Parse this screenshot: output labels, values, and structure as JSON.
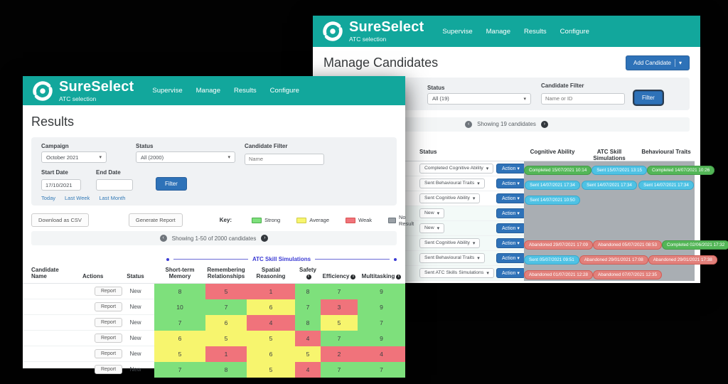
{
  "colors": {
    "teal": "#12a79c",
    "blue": "#2e72b8",
    "strong": "#7ee07c",
    "average": "#f7f56e",
    "weak": "#f0737b",
    "no_result": "#9aa0a6"
  },
  "back_window": {
    "brand": {
      "name": "SureSelect",
      "subtitle": "ATC selection"
    },
    "nav": [
      "Supervise",
      "Manage",
      "Results",
      "Configure"
    ],
    "page_title": "Manage Candidates",
    "add_candidate_label": "Add Candidate",
    "add_candidate_caret": "▾",
    "filters": {
      "status_label": "Status",
      "status_value": "All (19)",
      "candidate_filter_label": "Candidate Filter",
      "candidate_filter_placeholder": "Name or ID",
      "filter_button": "Filter"
    },
    "pagination": {
      "prev": "‹",
      "text": "Showing 19 candidates",
      "next": "›"
    },
    "table": {
      "headers": [
        "Status",
        "Cognitive Ability",
        "ATC Skill Simulations",
        "Behavioural Traits"
      ],
      "action_label": "Action ▾",
      "status_caret": "▾",
      "rows": [
        {
          "status": "Completed Cognitive Ability",
          "badges": [
            {
              "text": "Completed 15/07/2021 10:14",
              "type": "completed"
            },
            {
              "text": "Sent 15/07/2021 13:15",
              "type": "sent"
            },
            {
              "text": "Completed 14/07/2021 10:26",
              "type": "completed"
            }
          ]
        },
        {
          "status": "Sent Behavioural Traits",
          "badges": [
            {
              "text": "Sent 14/07/2021 17:34",
              "type": "sent"
            },
            {
              "text": "Sent 14/07/2021 17:34",
              "type": "sent"
            },
            {
              "text": "Sent 14/07/2021 17:34",
              "type": "sent"
            }
          ]
        },
        {
          "status": "Sent Cognitive Ability",
          "badges": [
            {
              "text": "Sent 14/07/2021 10:50",
              "type": "sent"
            },
            null,
            null
          ]
        },
        {
          "status": "New",
          "badges": [
            null,
            null,
            null
          ]
        },
        {
          "status": "New",
          "badges": [
            null,
            null,
            null
          ]
        },
        {
          "status": "Sent Cognitive Ability",
          "badges": [
            {
              "text": "Abandoned 29/07/2021 17:09",
              "type": "abandoned"
            },
            {
              "text": "Abandoned 05/07/2021 08:53",
              "type": "abandoned"
            },
            {
              "text": "Completed 02/06/2021 17:32",
              "type": "completed"
            }
          ]
        },
        {
          "status": "Sent Behavioural Traits",
          "badges": [
            {
              "text": "Sent 05/07/2021 09:51",
              "type": "sent"
            },
            {
              "text": "Abandoned 29/01/2021 17:08",
              "type": "abandoned"
            },
            {
              "text": "Abandoned 29/01/2021 17:38",
              "type": "abandoned"
            }
          ]
        },
        {
          "status": "Sent ATC Skills Simulations",
          "badges": [
            {
              "text": "Abandoned 01/07/2021 12:28",
              "type": "abandoned"
            },
            {
              "text": "Abandoned 07/07/2021 12:35",
              "type": "abandoned"
            },
            null
          ]
        }
      ]
    }
  },
  "front_window": {
    "brand": {
      "name": "SureSelect",
      "subtitle": "ATC selection"
    },
    "nav": [
      "Supervise",
      "Manage",
      "Results",
      "Configure"
    ],
    "page_title": "Results",
    "filters": {
      "campaign_label": "Campaign",
      "campaign_value": "October 2021",
      "status_label": "Status",
      "status_value": "All (2000)",
      "candidate_filter_label": "Candidate Filter",
      "candidate_filter_placeholder": "Name",
      "start_date_label": "Start Date",
      "start_date_value": "17/10/2021",
      "end_date_label": "End Date",
      "end_date_value": "",
      "filter_button": "Filter",
      "quick_links": [
        "Today",
        "Last Week",
        "Last Month"
      ]
    },
    "toolbar": {
      "download_csv": "Download as CSV",
      "generate_report": "Generate Report",
      "key_label": "Key:",
      "legend": [
        {
          "label": "Strong",
          "color": "#7ee07c",
          "border": "#4cae4c"
        },
        {
          "label": "Average",
          "color": "#f7f56e",
          "border": "#cfcb48"
        },
        {
          "label": "Weak",
          "color": "#f0737b",
          "border": "#d9534f"
        },
        {
          "label": "No Result",
          "color": "#9aa0a6",
          "border": "#6c757d"
        }
      ]
    },
    "pagination": {
      "prev": "‹",
      "text": "Showing 1-50 of 2000 candidates",
      "next": "›"
    },
    "span_header": "ATC Skill Simulations",
    "table": {
      "headers": [
        {
          "label": "Candidate Name",
          "align": "left"
        },
        {
          "label": "Actions",
          "align": "left"
        },
        {
          "label": "Status"
        },
        {
          "label": "Short-term Memory"
        },
        {
          "label": "Remembering Relationships"
        },
        {
          "label": "Spatial Reasoning"
        },
        {
          "label": "Safety",
          "info": true
        },
        {
          "label": "Efficiency",
          "info": true
        },
        {
          "label": "Multitasking",
          "info": true
        }
      ],
      "rows": [
        {
          "name": "",
          "action": "Report",
          "status": "New",
          "scores": [
            {
              "value": 8,
              "level": "strong"
            },
            {
              "value": 5,
              "level": "weak"
            },
            {
              "value": 1,
              "level": "weak"
            },
            {
              "value": 8,
              "level": "strong"
            },
            {
              "value": 7,
              "level": "strong"
            },
            {
              "value": 9,
              "level": "strong"
            }
          ]
        },
        {
          "name": "",
          "action": "Report",
          "status": "New",
          "scores": [
            {
              "value": 10,
              "level": "strong"
            },
            {
              "value": 7,
              "level": "strong"
            },
            {
              "value": 6,
              "level": "average"
            },
            {
              "value": 7,
              "level": "strong"
            },
            {
              "value": 3,
              "level": "weak"
            },
            {
              "value": 9,
              "level": "strong"
            }
          ]
        },
        {
          "name": "",
          "action": "Report",
          "status": "New",
          "scores": [
            {
              "value": 7,
              "level": "strong"
            },
            {
              "value": 6,
              "level": "average"
            },
            {
              "value": 4,
              "level": "weak"
            },
            {
              "value": 8,
              "level": "strong"
            },
            {
              "value": 5,
              "level": "average"
            },
            {
              "value": 7,
              "level": "strong"
            }
          ]
        },
        {
          "name": "",
          "action": "Report",
          "status": "New",
          "scores": [
            {
              "value": 6,
              "level": "average"
            },
            {
              "value": 5,
              "level": "average"
            },
            {
              "value": 5,
              "level": "average"
            },
            {
              "value": 4,
              "level": "weak"
            },
            {
              "value": 7,
              "level": "strong"
            },
            {
              "value": 9,
              "level": "strong"
            }
          ]
        },
        {
          "name": "",
          "action": "Report",
          "status": "New",
          "scores": [
            {
              "value": 5,
              "level": "average"
            },
            {
              "value": 1,
              "level": "weak"
            },
            {
              "value": 6,
              "level": "average"
            },
            {
              "value": 5,
              "level": "average"
            },
            {
              "value": 2,
              "level": "weak"
            },
            {
              "value": 4,
              "level": "weak"
            }
          ]
        },
        {
          "name": "",
          "action": "Report",
          "status": "New",
          "scores": [
            {
              "value": 7,
              "level": "strong"
            },
            {
              "value": 8,
              "level": "strong"
            },
            {
              "value": 5,
              "level": "average"
            },
            {
              "value": 4,
              "level": "weak"
            },
            {
              "value": 7,
              "level": "strong"
            },
            {
              "value": 7,
              "level": "strong"
            }
          ]
        }
      ]
    }
  }
}
